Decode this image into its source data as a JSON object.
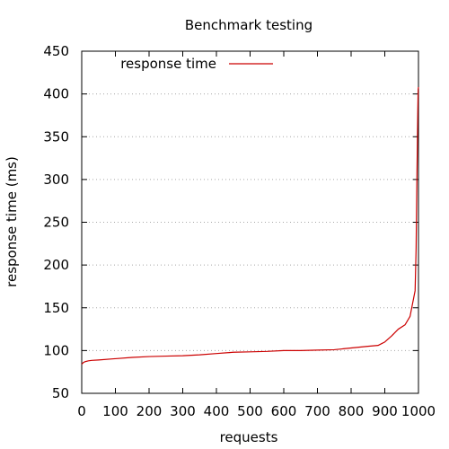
{
  "chart_data": {
    "type": "line",
    "title": "Benchmark testing",
    "xlabel": "requests",
    "ylabel": "response time (ms)",
    "xlim": [
      0,
      1000
    ],
    "ylim": [
      50,
      450
    ],
    "xticks": [
      0,
      100,
      200,
      300,
      400,
      500,
      600,
      700,
      800,
      900,
      1000
    ],
    "yticks": [
      50,
      100,
      150,
      200,
      250,
      300,
      350,
      400,
      450
    ],
    "grid": "horizontal-dotted",
    "legend_position": "top-left",
    "series": [
      {
        "name": "response time",
        "color": "#cc0000",
        "x": [
          0,
          5,
          10,
          20,
          30,
          50,
          100,
          150,
          200,
          250,
          300,
          350,
          400,
          450,
          500,
          550,
          600,
          650,
          700,
          750,
          800,
          850,
          880,
          900,
          920,
          940,
          960,
          975,
          985,
          990,
          993,
          995,
          997,
          998,
          999,
          1000
        ],
        "y": [
          84,
          86,
          87,
          88,
          88.5,
          89,
          90.5,
          92,
          93,
          93.5,
          94,
          95,
          96.5,
          98,
          98.5,
          99,
          100,
          100,
          100.5,
          101,
          103,
          105,
          106,
          110,
          117,
          125,
          130,
          140,
          160,
          170,
          220,
          290,
          350,
          380,
          405,
          408
        ]
      }
    ]
  }
}
